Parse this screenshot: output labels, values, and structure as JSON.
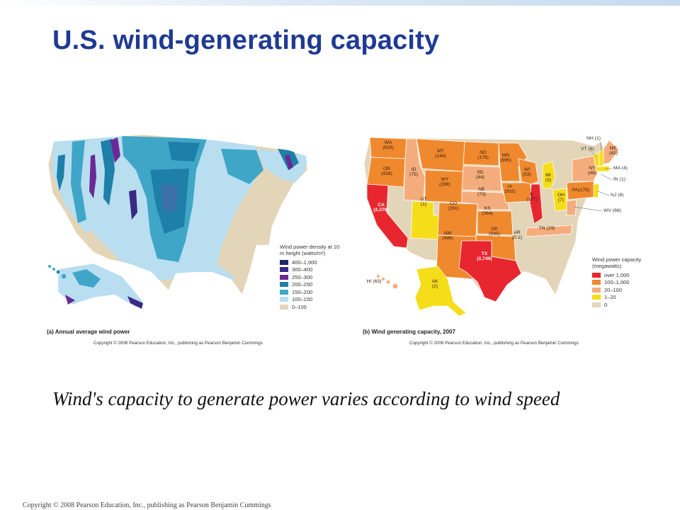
{
  "slide": {
    "title": "U.S. wind-generating capacity",
    "subtitle": "Wind's capacity to generate power varies according to wind speed",
    "footer": "Copyright © 2008 Pearson Education, Inc., publishing as Pearson Benjamin Cummings"
  },
  "map_a": {
    "caption": "(a) Annual average wind power",
    "copyright": "Copyright © 2008 Pearson Education, Inc., publishing as Pearson Benjamin Cummings",
    "legend_title": "Wind power density at 10 m height (watts/m²)",
    "legend": [
      {
        "label": "400–1,000",
        "color": "#1c2a6b"
      },
      {
        "label": "300–400",
        "color": "#3a2a85"
      },
      {
        "label": "250–300",
        "color": "#6a2a95"
      },
      {
        "label": "200–250",
        "color": "#1e7fa8"
      },
      {
        "label": "150–200",
        "color": "#3fa6c8"
      },
      {
        "label": "100–150",
        "color": "#b8def0"
      },
      {
        "label": "0–100",
        "color": "#e3d5b8"
      }
    ]
  },
  "map_b": {
    "caption": "(b) Wind generating capacity, 2007",
    "copyright": "Copyright © 2008 Pearson Education, Inc., publishing as Pearson Benjamin Cummings",
    "legend_title": "Wind power capacity (megawatts)",
    "legend": [
      {
        "label": "over 1,000",
        "color": "#e8262f"
      },
      {
        "label": "100–1,000",
        "color": "#f0892e"
      },
      {
        "label": "20–100",
        "color": "#f5ac7c"
      },
      {
        "label": "1–20",
        "color": "#f5dd1a"
      },
      {
        "label": "0",
        "color": "#e3d5b8"
      }
    ],
    "states": [
      {
        "abbr": "WA",
        "value": "(818)"
      },
      {
        "abbr": "OR",
        "value": "(438)"
      },
      {
        "abbr": "CA",
        "value": "(2,376)"
      },
      {
        "abbr": "ID",
        "value": "(75)"
      },
      {
        "abbr": "MT",
        "value": "(146)"
      },
      {
        "abbr": "WY",
        "value": "(288)"
      },
      {
        "abbr": "UT",
        "value": "(1)"
      },
      {
        "abbr": "CO",
        "value": "(291)"
      },
      {
        "abbr": "NM",
        "value": "(496)"
      },
      {
        "abbr": "ND",
        "value": "(178)"
      },
      {
        "abbr": "SD",
        "value": "(44)"
      },
      {
        "abbr": "NE",
        "value": "(73)"
      },
      {
        "abbr": "KS",
        "value": "(364)"
      },
      {
        "abbr": "OK",
        "value": "(595)"
      },
      {
        "abbr": "TX",
        "value": "(2,749)"
      },
      {
        "abbr": "MN",
        "value": "(895)"
      },
      {
        "abbr": "IA",
        "value": "(932)"
      },
      {
        "abbr": "WI",
        "value": "(53)"
      },
      {
        "abbr": "IL",
        "value": "(107)"
      },
      {
        "abbr": "MI",
        "value": "(3)"
      },
      {
        "abbr": "OH",
        "value": "(7)"
      },
      {
        "abbr": "PA",
        "value": "(179)"
      },
      {
        "abbr": "NY",
        "value": "(48)"
      },
      {
        "abbr": "TN",
        "value": "(29)"
      },
      {
        "abbr": "AR",
        "value": "(0.1)"
      },
      {
        "abbr": "AK",
        "value": "(2)"
      },
      {
        "abbr": "HI",
        "value": "(63)"
      }
    ],
    "callouts": [
      {
        "label": "NH (1)"
      },
      {
        "label": "VT (6)"
      },
      {
        "label": "ME (42)"
      },
      {
        "label": "MA (4)"
      },
      {
        "label": "RI (1)"
      },
      {
        "label": "NJ (8)"
      },
      {
        "label": "WV (66)"
      }
    ]
  }
}
